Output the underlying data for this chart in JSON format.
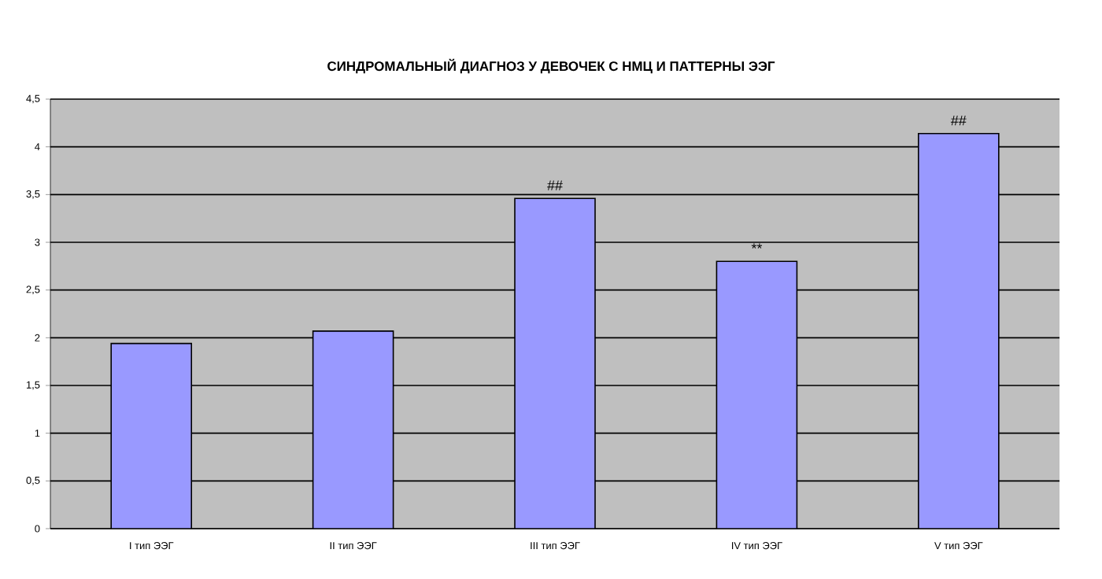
{
  "chart_data": {
    "type": "bar",
    "title": "СИНДРОМАЛЬНЫЙ ДИАГНОЗ У ДЕВОЧЕК С НМЦ И ПАТТЕРНЫ ЭЭГ",
    "categories": [
      "I тип ЭЭГ",
      "II тип ЭЭГ",
      "III тип ЭЭГ",
      "IV тип ЭЭГ",
      "V тип ЭЭГ"
    ],
    "values": [
      1.94,
      2.07,
      3.46,
      2.8,
      4.14
    ],
    "color": "#9999ff",
    "ylim": [
      0,
      4.5
    ],
    "yticks": [
      0,
      {
        "value": 0.5,
        "label": "0,5"
      },
      1,
      {
        "value": 1.5,
        "label": "1,5"
      },
      2,
      {
        "value": 2.5,
        "label": "2,5"
      },
      3,
      {
        "value": 3.5,
        "label": "3,5"
      },
      4,
      {
        "value": 4.5,
        "label": "4,5"
      }
    ],
    "grid": "y",
    "annotations": [
      {
        "text": "##",
        "x": "III тип ЭЭГ",
        "y": 3.46
      },
      {
        "text": "**",
        "x": "IV тип ЭЭГ",
        "y": 2.8
      },
      {
        "text": "##",
        "x": "V тип ЭЭГ",
        "y": 4.14
      }
    ]
  }
}
